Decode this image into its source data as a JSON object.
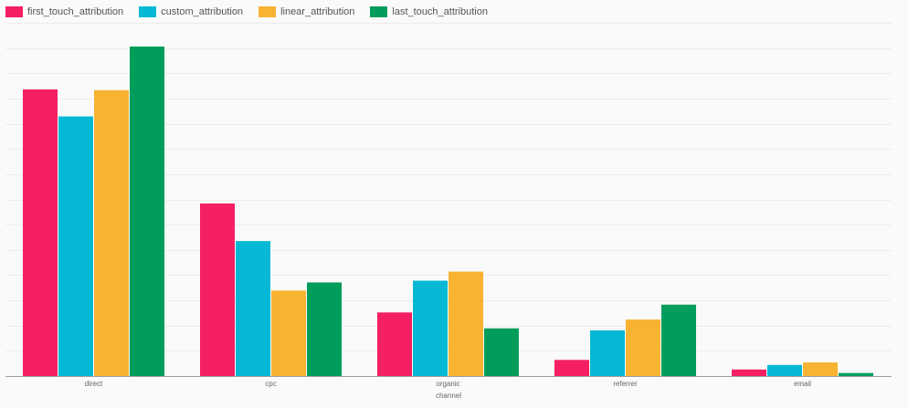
{
  "chart_data": {
    "type": "bar",
    "title": "",
    "xlabel": "channel",
    "ylabel": "",
    "categories": [
      "direct",
      "cpc",
      "organic",
      "referrer",
      "email"
    ],
    "series": [
      {
        "name": "first_touch_attribution",
        "color": "#f51f63",
        "values": [
          1136,
          684,
          252,
          64,
          26
        ]
      },
      {
        "name": "custom_attribution",
        "color": "#05b9d5",
        "values": [
          1029,
          535,
          378,
          181,
          44
        ]
      },
      {
        "name": "linear_attribution",
        "color": "#f8b333",
        "values": [
          1133,
          339,
          414,
          224,
          54
        ]
      },
      {
        "name": "last_touch_attribution",
        "color": "#019d5b",
        "values": [
          1306,
          371,
          189,
          283,
          12
        ]
      }
    ],
    "ylim": [
      0,
      1400
    ],
    "grid": true,
    "grid_step": 100,
    "legend_position": "top-left",
    "colors": {
      "background": "#fafafa",
      "grid": "#ececec",
      "axis": "#9e9e9e",
      "tick_text": "#666666"
    }
  }
}
